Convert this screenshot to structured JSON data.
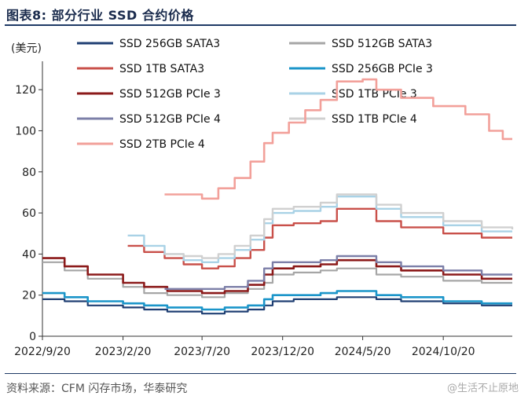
{
  "figure": {
    "title": "图表8:  部分行业 SSD 合约价格",
    "source": "资料来源：CFM 闪存市场，华泰研究",
    "watermark": "@生活不止原地"
  },
  "chart_data": {
    "type": "line",
    "ylabel": "(美元)",
    "ylim": [
      0,
      130
    ],
    "yticks": [
      0,
      20,
      40,
      60,
      80,
      100,
      120
    ],
    "xlim": [
      "2022-09-20",
      "2025-02-28"
    ],
    "xticks": [
      "2022/9/20",
      "2023/2/20",
      "2023/7/20",
      "2023/12/20",
      "2024/5/20",
      "2024/10/20"
    ],
    "grid": false,
    "legend": "top, two columns",
    "series": [
      {
        "name": "SSD 256GB SATA3",
        "color": "#1f3f73",
        "width": 2.2,
        "points": [
          [
            "2022-09-20",
            18
          ],
          [
            "2022-11-01",
            17
          ],
          [
            "2022-12-15",
            15
          ],
          [
            "2023-02-20",
            14
          ],
          [
            "2023-04-01",
            13
          ],
          [
            "2023-05-15",
            12
          ],
          [
            "2023-07-20",
            11
          ],
          [
            "2023-09-01",
            12
          ],
          [
            "2023-10-15",
            13
          ],
          [
            "2023-11-15",
            15
          ],
          [
            "2023-12-01",
            17
          ],
          [
            "2024-01-10",
            18
          ],
          [
            "2024-03-01",
            18
          ],
          [
            "2024-04-01",
            19
          ],
          [
            "2024-05-20",
            19
          ],
          [
            "2024-06-15",
            18
          ],
          [
            "2024-08-01",
            17
          ],
          [
            "2024-10-20",
            16
          ],
          [
            "2025-01-01",
            15
          ],
          [
            "2025-02-28",
            15
          ]
        ]
      },
      {
        "name": "SSD 512GB SATA3",
        "color": "#a6a6a6",
        "width": 2.2,
        "points": [
          [
            "2022-09-20",
            36
          ],
          [
            "2022-11-01",
            32
          ],
          [
            "2022-12-15",
            28
          ],
          [
            "2023-02-20",
            24
          ],
          [
            "2023-04-01",
            21
          ],
          [
            "2023-05-15",
            20
          ],
          [
            "2023-07-20",
            19
          ],
          [
            "2023-09-01",
            21
          ],
          [
            "2023-10-15",
            23
          ],
          [
            "2023-11-15",
            26
          ],
          [
            "2023-12-01",
            30
          ],
          [
            "2024-01-10",
            31
          ],
          [
            "2024-03-01",
            32
          ],
          [
            "2024-04-01",
            33
          ],
          [
            "2024-05-20",
            33
          ],
          [
            "2024-06-15",
            30
          ],
          [
            "2024-08-01",
            29
          ],
          [
            "2024-10-20",
            27
          ],
          [
            "2025-01-01",
            26
          ],
          [
            "2025-02-28",
            26
          ]
        ]
      },
      {
        "name": "SSD 1TB SATA3",
        "color": "#c9504a",
        "width": 2.4,
        "points": [
          [
            "2023-03-01",
            44
          ],
          [
            "2023-04-01",
            41
          ],
          [
            "2023-05-10",
            38
          ],
          [
            "2023-06-15",
            35
          ],
          [
            "2023-07-20",
            33
          ],
          [
            "2023-08-20",
            34
          ],
          [
            "2023-09-20",
            38
          ],
          [
            "2023-10-20",
            42
          ],
          [
            "2023-11-15",
            48
          ],
          [
            "2023-12-01",
            54
          ],
          [
            "2024-01-10",
            55
          ],
          [
            "2024-03-01",
            56
          ],
          [
            "2024-04-01",
            62
          ],
          [
            "2024-05-20",
            62
          ],
          [
            "2024-06-15",
            56
          ],
          [
            "2024-08-01",
            53
          ],
          [
            "2024-10-20",
            50
          ],
          [
            "2025-01-01",
            48
          ],
          [
            "2025-02-28",
            48
          ]
        ]
      },
      {
        "name": "SSD 256GB PCIe 3",
        "color": "#1b95c9",
        "width": 2.6,
        "points": [
          [
            "2022-09-20",
            21
          ],
          [
            "2022-11-01",
            19
          ],
          [
            "2022-12-15",
            17
          ],
          [
            "2023-02-20",
            16
          ],
          [
            "2023-04-01",
            15
          ],
          [
            "2023-05-15",
            14
          ],
          [
            "2023-07-20",
            13
          ],
          [
            "2023-09-01",
            14
          ],
          [
            "2023-10-15",
            15
          ],
          [
            "2023-11-15",
            18
          ],
          [
            "2023-12-01",
            20
          ],
          [
            "2024-01-10",
            20
          ],
          [
            "2024-03-01",
            21
          ],
          [
            "2024-04-01",
            22
          ],
          [
            "2024-05-20",
            22
          ],
          [
            "2024-06-15",
            20
          ],
          [
            "2024-08-01",
            19
          ],
          [
            "2024-10-20",
            17
          ],
          [
            "2025-01-01",
            16
          ],
          [
            "2025-02-28",
            16
          ]
        ]
      },
      {
        "name": "SSD 512GB PCIe 3",
        "color": "#8b1a1a",
        "width": 2.6,
        "points": [
          [
            "2022-09-20",
            38
          ],
          [
            "2022-11-01",
            34
          ],
          [
            "2022-12-15",
            30
          ],
          [
            "2023-02-20",
            26
          ],
          [
            "2023-04-01",
            24
          ],
          [
            "2023-05-15",
            22
          ],
          [
            "2023-07-20",
            21
          ],
          [
            "2023-09-01",
            22
          ],
          [
            "2023-10-15",
            25
          ],
          [
            "2023-11-15",
            30
          ],
          [
            "2023-12-01",
            33
          ],
          [
            "2024-01-10",
            34
          ],
          [
            "2024-03-01",
            35
          ],
          [
            "2024-04-01",
            37
          ],
          [
            "2024-05-20",
            37
          ],
          [
            "2024-06-15",
            34
          ],
          [
            "2024-08-01",
            32
          ],
          [
            "2024-10-20",
            30
          ],
          [
            "2025-01-01",
            28
          ],
          [
            "2025-02-28",
            28
          ]
        ]
      },
      {
        "name": "SSD 1TB PCIe 3",
        "color": "#a9d2e6",
        "width": 2.4,
        "points": [
          [
            "2023-03-01",
            49
          ],
          [
            "2023-04-01",
            44
          ],
          [
            "2023-05-10",
            40
          ],
          [
            "2023-06-15",
            37
          ],
          [
            "2023-07-20",
            36
          ],
          [
            "2023-08-20",
            38
          ],
          [
            "2023-09-20",
            42
          ],
          [
            "2023-10-20",
            47
          ],
          [
            "2023-11-15",
            55
          ],
          [
            "2023-12-01",
            60
          ],
          [
            "2024-01-10",
            61
          ],
          [
            "2024-03-01",
            63
          ],
          [
            "2024-04-01",
            68
          ],
          [
            "2024-05-20",
            68
          ],
          [
            "2024-06-15",
            62
          ],
          [
            "2024-08-01",
            58
          ],
          [
            "2024-10-20",
            54
          ],
          [
            "2025-01-01",
            51
          ],
          [
            "2025-02-28",
            51
          ]
        ]
      },
      {
        "name": "SSD 512GB PCIe 4",
        "color": "#7c7fa8",
        "width": 2.4,
        "points": [
          [
            "2023-05-10",
            23
          ],
          [
            "2023-06-15",
            23
          ],
          [
            "2023-07-20",
            23
          ],
          [
            "2023-09-01",
            24
          ],
          [
            "2023-10-15",
            27
          ],
          [
            "2023-11-15",
            33
          ],
          [
            "2023-12-01",
            36
          ],
          [
            "2024-01-10",
            36
          ],
          [
            "2024-03-01",
            37
          ],
          [
            "2024-04-01",
            39
          ],
          [
            "2024-05-20",
            39
          ],
          [
            "2024-06-15",
            36
          ],
          [
            "2024-08-01",
            34
          ],
          [
            "2024-10-20",
            32
          ],
          [
            "2025-01-01",
            30
          ],
          [
            "2025-02-28",
            30
          ]
        ]
      },
      {
        "name": "SSD 1TB PCIe 4",
        "color": "#d0d0d0",
        "width": 2.4,
        "points": [
          [
            "2023-05-10",
            40
          ],
          [
            "2023-06-15",
            39
          ],
          [
            "2023-07-20",
            38
          ],
          [
            "2023-08-20",
            40
          ],
          [
            "2023-09-20",
            44
          ],
          [
            "2023-10-20",
            49
          ],
          [
            "2023-11-15",
            57
          ],
          [
            "2023-12-01",
            62
          ],
          [
            "2024-01-10",
            63
          ],
          [
            "2024-03-01",
            65
          ],
          [
            "2024-04-01",
            69
          ],
          [
            "2024-05-20",
            69
          ],
          [
            "2024-06-15",
            64
          ],
          [
            "2024-08-01",
            60
          ],
          [
            "2024-10-20",
            56
          ],
          [
            "2025-01-01",
            53
          ],
          [
            "2025-02-28",
            52
          ]
        ]
      },
      {
        "name": "SSD 2TB PCIe 4",
        "color": "#f2a09a",
        "width": 2.6,
        "points": [
          [
            "2023-05-10",
            69
          ],
          [
            "2023-06-15",
            69
          ],
          [
            "2023-07-20",
            67
          ],
          [
            "2023-08-20",
            72
          ],
          [
            "2023-09-20",
            77
          ],
          [
            "2023-10-20",
            85
          ],
          [
            "2023-11-15",
            94
          ],
          [
            "2023-12-01",
            99
          ],
          [
            "2024-01-01",
            104
          ],
          [
            "2024-02-01",
            110
          ],
          [
            "2024-03-01",
            115
          ],
          [
            "2024-04-01",
            124
          ],
          [
            "2024-05-20",
            125
          ],
          [
            "2024-06-15",
            120
          ],
          [
            "2024-08-01",
            116
          ],
          [
            "2024-10-01",
            112
          ],
          [
            "2024-12-01",
            108
          ],
          [
            "2025-01-15",
            100
          ],
          [
            "2025-02-10",
            96
          ],
          [
            "2025-02-28",
            96
          ]
        ]
      }
    ]
  }
}
